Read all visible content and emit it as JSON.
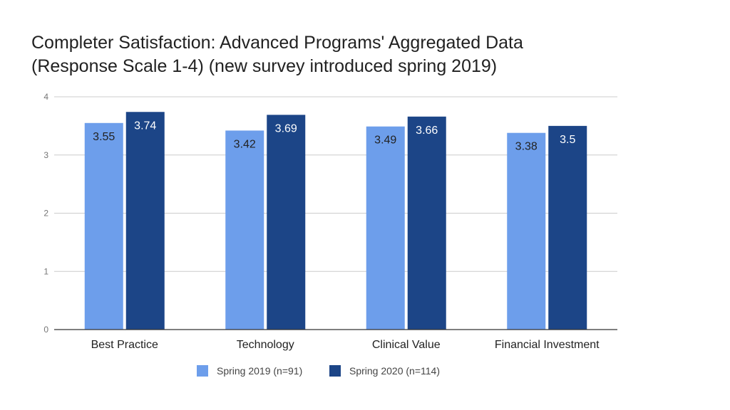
{
  "chart_data": {
    "type": "bar",
    "title": "Completer Satisfaction: Advanced Programs' Aggregated Data (Response Scale 1-4) (new survey introduced spring 2019)",
    "title_lines": [
      "Completer Satisfaction: Advanced Programs' Aggregated Data",
      "(Response Scale 1-4) (new survey introduced spring 2019)"
    ],
    "categories": [
      "Best Practice",
      "Technology",
      "Clinical Value",
      "Financial Investment"
    ],
    "series": [
      {
        "name": "Spring 2019 (n=91)",
        "color": "#6d9eeb",
        "label_color": "#222222",
        "values": [
          3.55,
          3.42,
          3.49,
          3.38
        ],
        "labels": [
          "3.55",
          "3.42",
          "3.49",
          "3.38"
        ]
      },
      {
        "name": "Spring 2020 (n=114)",
        "color": "#1c4587",
        "label_color": "#ffffff",
        "values": [
          3.74,
          3.69,
          3.66,
          3.5
        ],
        "labels": [
          "3.74",
          "3.69",
          "3.66",
          "3.5"
        ]
      }
    ],
    "ylim": [
      0,
      4
    ],
    "yticks": [
      "0",
      "1",
      "2",
      "3",
      "4"
    ],
    "xlabel": "",
    "ylabel": "",
    "grid": true,
    "legend": "bottom",
    "gridline_color": "#cccccc",
    "axis_color": "#333333"
  }
}
